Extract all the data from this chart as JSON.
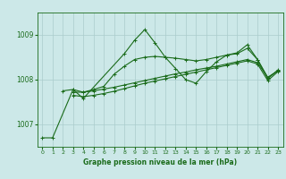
{
  "title": "Graphe pression niveau de la mer (hPa)",
  "xlabel_hours": [
    0,
    1,
    2,
    3,
    4,
    5,
    6,
    7,
    8,
    9,
    10,
    11,
    12,
    13,
    14,
    15,
    16,
    17,
    18,
    19,
    20,
    21,
    22,
    23
  ],
  "yticks": [
    1007,
    1008,
    1009
  ],
  "ylim": [
    1006.5,
    1009.5
  ],
  "xlim": [
    -0.5,
    23.5
  ],
  "bg_color": "#cce8e8",
  "grid_color": "#aacccc",
  "line_color": "#1a6b1a",
  "series": [
    {
      "x": [
        0,
        1,
        3,
        4,
        8,
        9,
        10,
        11,
        12,
        13,
        14,
        15,
        16,
        17,
        18,
        19,
        20,
        21,
        22,
        23
      ],
      "y": [
        1006.7,
        1006.7,
        1007.78,
        1007.58,
        1008.58,
        1008.88,
        1009.12,
        1008.82,
        1008.5,
        1008.25,
        1008.0,
        1007.92,
        1008.18,
        1008.4,
        1008.55,
        1008.6,
        1008.78,
        1008.45,
        1008.05,
        1008.2
      ]
    },
    {
      "x": [
        3,
        4,
        5,
        6,
        7,
        8,
        9,
        10,
        11,
        12,
        13,
        14,
        15,
        16,
        17,
        18,
        19,
        20,
        21,
        22,
        23
      ],
      "y": [
        1007.72,
        1007.72,
        1007.75,
        1007.79,
        1007.83,
        1007.88,
        1007.93,
        1007.98,
        1008.03,
        1008.08,
        1008.13,
        1008.17,
        1008.22,
        1008.26,
        1008.3,
        1008.35,
        1008.4,
        1008.45,
        1008.38,
        1008.05,
        1008.2
      ]
    },
    {
      "x": [
        3,
        4,
        5,
        6,
        7,
        8,
        9,
        10,
        11,
        12,
        13,
        14,
        15,
        16,
        17,
        18,
        19,
        20,
        21,
        22,
        23
      ],
      "y": [
        1007.65,
        1007.62,
        1007.65,
        1007.69,
        1007.74,
        1007.8,
        1007.86,
        1007.92,
        1007.97,
        1008.02,
        1008.07,
        1008.12,
        1008.17,
        1008.22,
        1008.27,
        1008.32,
        1008.37,
        1008.42,
        1008.35,
        1007.98,
        1008.18
      ]
    },
    {
      "x": [
        2,
        3,
        4,
        5,
        6,
        7,
        8,
        9,
        10,
        11,
        12,
        13,
        14,
        15,
        16,
        17,
        18,
        19,
        20,
        21,
        22,
        23
      ],
      "y": [
        1007.75,
        1007.78,
        1007.72,
        1007.78,
        1007.85,
        1008.12,
        1008.3,
        1008.45,
        1008.5,
        1008.52,
        1008.5,
        1008.48,
        1008.45,
        1008.42,
        1008.45,
        1008.5,
        1008.55,
        1008.58,
        1008.7,
        1008.45,
        1008.02,
        1008.22
      ]
    }
  ]
}
